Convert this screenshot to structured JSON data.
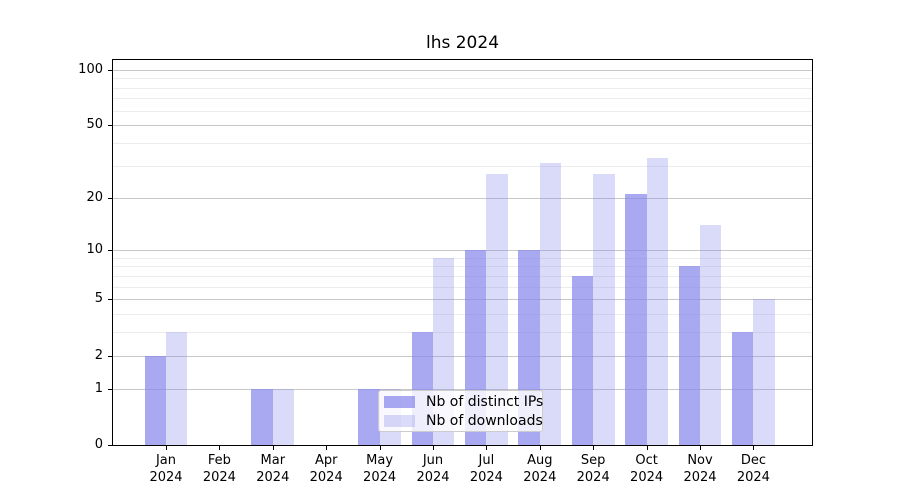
{
  "chart_data": {
    "type": "bar",
    "title": "lhs 2024",
    "x_months": [
      "Jan",
      "Feb",
      "Mar",
      "Apr",
      "May",
      "Jun",
      "Jul",
      "Aug",
      "Sep",
      "Oct",
      "Nov",
      "Dec"
    ],
    "x_year": "2024",
    "series": [
      {
        "name": "Nb of distinct IPs",
        "key": "distinct-ips",
        "color": "rgba(133,133,235,0.7)",
        "values": [
          2,
          0,
          1,
          0,
          1,
          3,
          10,
          10,
          7,
          21,
          8,
          3
        ]
      },
      {
        "name": "Nb of downloads",
        "key": "downloads",
        "color": "rgba(133,133,235,0.3)",
        "values": [
          3,
          0,
          1,
          0,
          1,
          9,
          27,
          31,
          27,
          33,
          14,
          5
        ]
      }
    ],
    "y_axis": {
      "scale": "log1p",
      "ticks": [
        0,
        1,
        2,
        5,
        10,
        20,
        50,
        100
      ],
      "minor_ticks": [
        3,
        4,
        6,
        7,
        8,
        9,
        30,
        40,
        60,
        70,
        80,
        90
      ],
      "top_value": 113
    },
    "legend": {
      "position": "lower-center",
      "entries": [
        "Nb of distinct IPs",
        "Nb of downloads"
      ]
    },
    "colors": {
      "bar_base": "#8585eb",
      "grid_major": "#c8c8c8",
      "grid_minor": "#ececec",
      "axis": "#000000",
      "background": "#ffffff"
    }
  }
}
